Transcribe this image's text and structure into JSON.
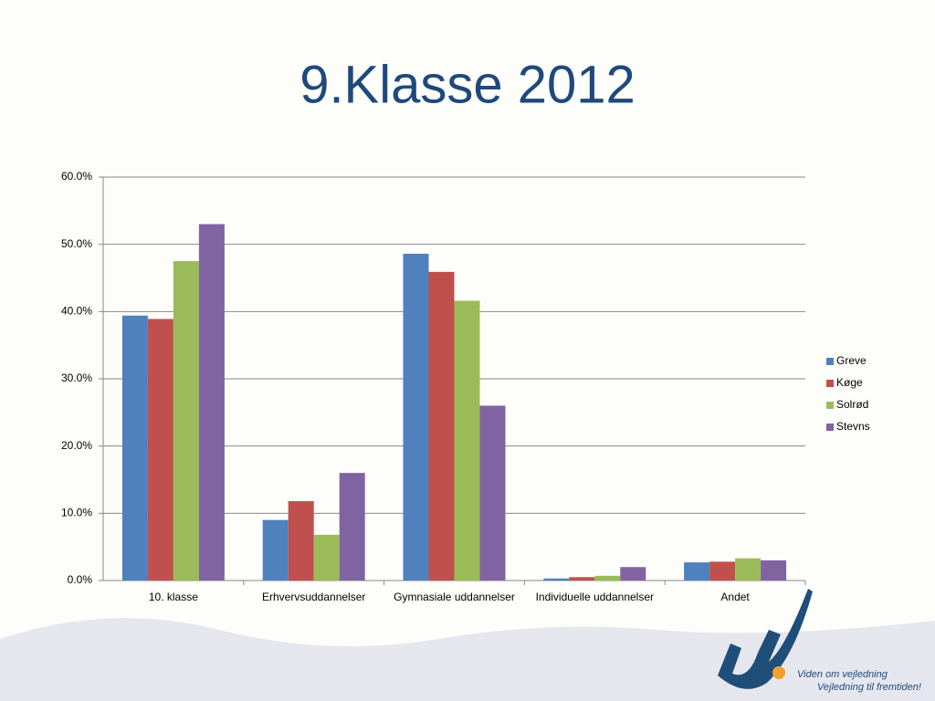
{
  "chart_data": {
    "type": "bar",
    "title": "9.Klasse 2012",
    "categories": [
      "10. klasse",
      "Erhvervsuddannelser",
      "Gymnasiale uddannelser",
      "Individuelle uddannelser",
      "Andet"
    ],
    "series": [
      {
        "name": "Greve",
        "color": "#4f81bd",
        "values": [
          39.4,
          9.0,
          48.6,
          0.3,
          2.7
        ]
      },
      {
        "name": "Køge",
        "color": "#c0504d",
        "values": [
          38.9,
          11.8,
          45.9,
          0.5,
          2.8
        ]
      },
      {
        "name": "Solrød",
        "color": "#9bbb59",
        "values": [
          47.5,
          6.8,
          41.6,
          0.7,
          3.3
        ]
      },
      {
        "name": "Stevns",
        "color": "#8064a2",
        "values": [
          53.0,
          16.0,
          26.0,
          2.0,
          3.0
        ]
      }
    ],
    "ylim": [
      0,
      60
    ],
    "yticks": [
      {
        "value": 0,
        "label": "0.0%"
      },
      {
        "value": 10,
        "label": "10.0%"
      },
      {
        "value": 20,
        "label": "20.0%"
      },
      {
        "value": 30,
        "label": "30.0%"
      },
      {
        "value": 40,
        "label": "40.0%"
      },
      {
        "value": 50,
        "label": "50.0%"
      },
      {
        "value": 60,
        "label": "60.0%"
      }
    ],
    "grid": true,
    "legend": "right"
  },
  "footer": {
    "tagline1": "Viden om vejledning",
    "tagline2": "Vejledning til fremtiden!"
  }
}
